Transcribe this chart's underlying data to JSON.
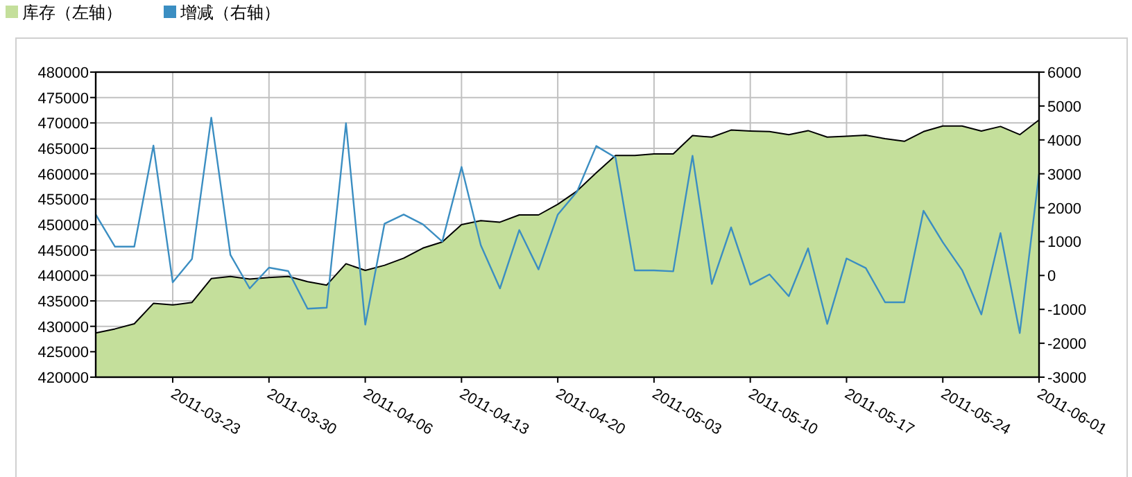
{
  "chart_data": {
    "type": "area",
    "categories": [
      null,
      null,
      null,
      null,
      "2011-03-23",
      null,
      null,
      null,
      null,
      "2011-03-30",
      null,
      null,
      null,
      null,
      "2011-04-06",
      null,
      null,
      null,
      null,
      "2011-04-13",
      null,
      null,
      null,
      null,
      "2011-04-20",
      null,
      null,
      null,
      null,
      "2011-05-03",
      null,
      null,
      null,
      null,
      "2011-05-10",
      null,
      null,
      null,
      null,
      "2011-05-17",
      null,
      null,
      null,
      null,
      "2011-05-24",
      null,
      null,
      null,
      null,
      "2011-06-01"
    ],
    "series": [
      {
        "name": "库存（左轴）",
        "color": "#c4df9b",
        "values": [
          428700,
          429500,
          430500,
          434500,
          434200,
          434700,
          439400,
          439800,
          439300,
          439600,
          439800,
          438800,
          438100,
          442300,
          441000,
          442000,
          443400,
          445400,
          446600,
          450000,
          450800,
          450500,
          451900,
          451900,
          454000,
          456600,
          460200,
          463600,
          463600,
          463900,
          463900,
          467500,
          467200,
          468600,
          468400,
          468300,
          467700,
          468500,
          467200,
          467400,
          467600,
          466900,
          466400,
          468300,
          469400,
          469400,
          468400,
          469300,
          467700,
          470600
        ]
      },
      {
        "name": "增减（右轴）",
        "type": "line",
        "axis": "y2",
        "color": "#3b8ec2",
        "values": [
          1800,
          850,
          850,
          3830,
          -200,
          490,
          4660,
          610,
          -380,
          230,
          130,
          -980,
          -950,
          4490,
          -1450,
          1530,
          1800,
          1510,
          1000,
          3200,
          890,
          -380,
          1340,
          180,
          1800,
          2470,
          3820,
          3480,
          150,
          150,
          120,
          3530,
          -250,
          1420,
          -270,
          30,
          -610,
          800,
          -1430,
          500,
          220,
          -790,
          -790,
          1910,
          980,
          160,
          -1150,
          1250,
          -1700,
          3000
        ]
      }
    ],
    "ylim": [
      420000,
      480000
    ],
    "yticks": [
      420000,
      425000,
      430000,
      435000,
      440000,
      445000,
      450000,
      455000,
      460000,
      465000,
      470000,
      475000,
      480000
    ],
    "y2lim": [
      -3000,
      6000
    ],
    "y2ticks": [
      -3000,
      -2000,
      -1000,
      0,
      1000,
      2000,
      3000,
      4000,
      5000,
      6000
    ],
    "grid": true,
    "legend": "top left"
  }
}
